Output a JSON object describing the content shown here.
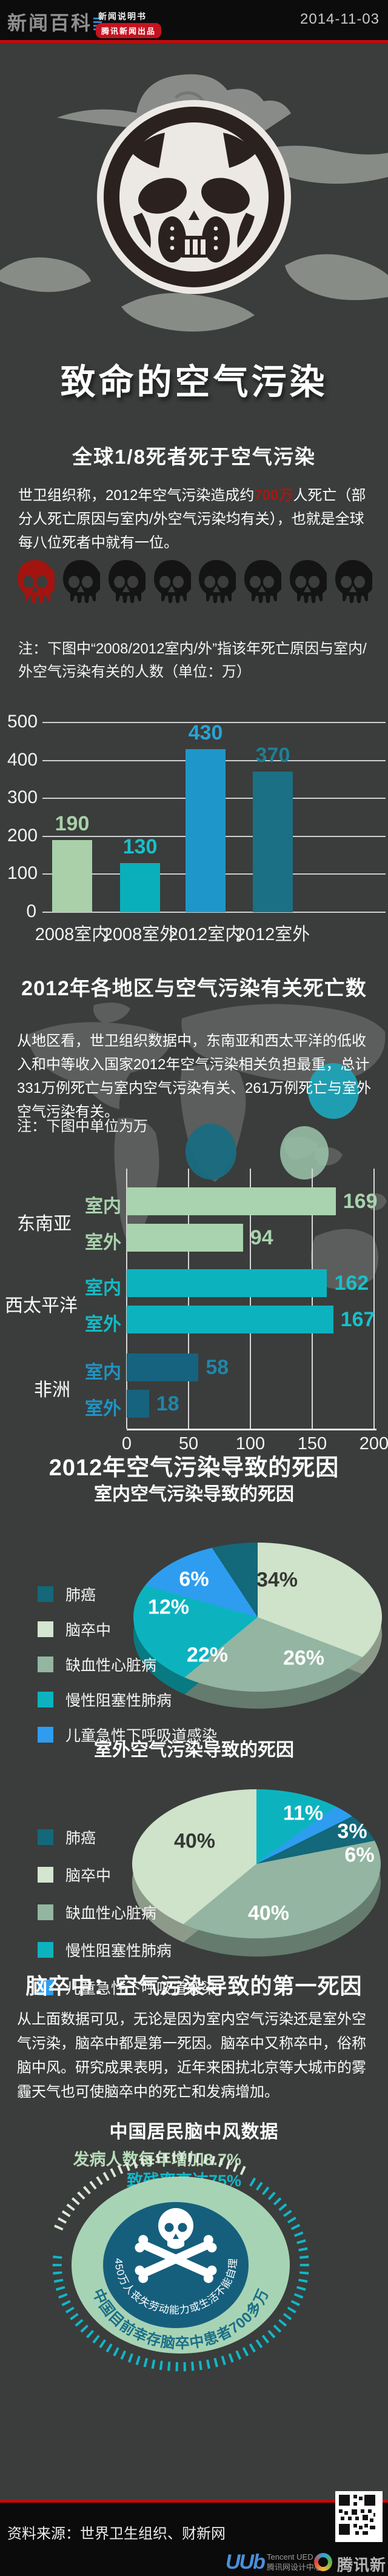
{
  "header": {
    "logo": "新闻百科",
    "tagline": "新闻说明书",
    "badge": "腾讯新闻出品",
    "date": "2014-11-03"
  },
  "hero": {
    "title": "致命的空气污染",
    "subtitle": "全球1/8死者死于空气污染"
  },
  "intro": {
    "pre": "世卫组织称，2012年空气污染造成约",
    "highlight": "700万",
    "post": "人死亡（部分人死亡原因与室内/外空气污染均有关），也就是全球每八位死者中就有一位。",
    "skulls_total": 8,
    "skulls_red": 1,
    "skull_red_color": "#a31410",
    "skull_black_color": "#141414"
  },
  "note1": "注：下图中“2008/2012室内/外”指该年死亡原因与室内/外空气污染有关的人数（单位：万）",
  "sec2": {
    "title": "2012年各地区与空气污染有关死亡数",
    "para": "从地区看，世卫组织数据中，东南亚和西太平洋的低收入和中等收入国家2012年空气污染相关负担最重，总计331万例死亡与室内空气污染有关、261万例死亡与室外空气污染有关。",
    "note": "注：下图中单位为万"
  },
  "sec3": {
    "title": "2012年空气污染导致的死因"
  },
  "legend": [
    {
      "label": "肺癌",
      "color": "#136879"
    },
    {
      "label": "脑卒中",
      "color": "#d4e5d0"
    },
    {
      "label": "缺血性心脏病",
      "color": "#93b5a2"
    },
    {
      "label": "慢性阻塞性肺病",
      "color": "#0cb3bf"
    },
    {
      "label": "儿童急性下呼吸道感染",
      "color": "#2e9df0"
    }
  ],
  "sec4": {
    "title": "脑卒中：空气污染导致的第一死因",
    "para": "从上面数据可见，无论是因为室内空气污染还是室外空气污染，脑卒中都是第一死因。脑卒中又称卒中，俗称脑中风。研究成果表明，近年来困扰北京等大城市的雾霾天气也可使脑卒中的死亡和发病增加。",
    "subtitle": "中国居民脑中风数据",
    "stat1": "发病人数每年增加8.7%",
    "stat2": "致残率高达75%",
    "stat1_color": "#b9dcba",
    "stat2_color": "#12b7c9",
    "circle_inner": "450万人丧失劳动能力或生活不能自理",
    "circle_outer": "中国目前幸存脑卒中患者700多万"
  },
  "footer": {
    "source": "资料来源：世界卫生组织、财新网",
    "ued_name": "Tencent UED",
    "ued_sub": "腾讯网设计中心",
    "news_name": "腾讯新闻"
  },
  "chart_data": [
    {
      "type": "bar",
      "title": "该年死亡原因与室内/外空气污染有关的人数",
      "unit": "万",
      "categories": [
        "2008室内",
        "2008室外",
        "2012室内",
        "2012室外"
      ],
      "values": [
        190,
        130,
        430,
        370
      ],
      "bar_colors": [
        "#a9d0a9",
        "#0aafbc",
        "#1f96c9",
        "#1b7085"
      ],
      "label_colors": [
        "#a9d0a9",
        "#17c0cb",
        "#2aa3d6",
        "#1e7f97"
      ],
      "ylim": [
        0,
        500
      ],
      "yticks": [
        0,
        100,
        200,
        300,
        400,
        500
      ],
      "grid": true
    },
    {
      "type": "bar-horizontal",
      "title": "2012年各地区与空气污染有关死亡数",
      "unit": "万",
      "xlim": [
        0,
        200
      ],
      "xticks": [
        0,
        50,
        100,
        150,
        200
      ],
      "grid": true,
      "groups": [
        {
          "name": "东南亚",
          "color": "#a9d3ae",
          "row_label_color": "#a9d3ae",
          "value_color": "#a9d3ae",
          "rows": [
            {
              "label": "室内",
              "value": 169
            },
            {
              "label": "室外",
              "value": 94
            }
          ]
        },
        {
          "name": "西太平洋",
          "color": "#0cb3bf",
          "row_label_color": "#14bac6",
          "value_color": "#17c0cb",
          "rows": [
            {
              "label": "室内",
              "value": 162
            },
            {
              "label": "室外",
              "value": 167
            }
          ]
        },
        {
          "name": "非洲",
          "color": "#15637f",
          "row_label_color": "#1f94c4",
          "value_color": "#1e86ad",
          "rows": [
            {
              "label": "室内",
              "value": 58
            },
            {
              "label": "室外",
              "value": 18
            }
          ]
        }
      ]
    },
    {
      "type": "pie",
      "title": "室内空气污染导致的死因",
      "slices": [
        {
          "label": "脑卒中",
          "pct": 34,
          "color": "#cfe2ca"
        },
        {
          "label": "缺血性心脏病",
          "pct": 26,
          "color": "#93b5a2"
        },
        {
          "label": "慢性阻塞性肺病",
          "pct": 22,
          "color": "#0cb3bf"
        },
        {
          "label": "儿童急性下呼吸道感染",
          "pct": 12,
          "color": "#2e9df0"
        },
        {
          "label": "肺癌",
          "pct": 6,
          "color": "#136879"
        }
      ]
    },
    {
      "type": "pie",
      "title": "室外空气污染导致的死因",
      "slices": [
        {
          "label": "慢性阻塞性肺病",
          "pct": 11,
          "color": "#0cb3bf"
        },
        {
          "label": "儿童急性下呼吸道感染",
          "pct": 3,
          "color": "#2e9df0"
        },
        {
          "label": "肺癌",
          "pct": 6,
          "color": "#136879"
        },
        {
          "label": "缺血性心脏病",
          "pct": 40,
          "color": "#93b5a2"
        },
        {
          "label": "脑卒中",
          "pct": 40,
          "color": "#cfe2ca"
        }
      ]
    }
  ]
}
